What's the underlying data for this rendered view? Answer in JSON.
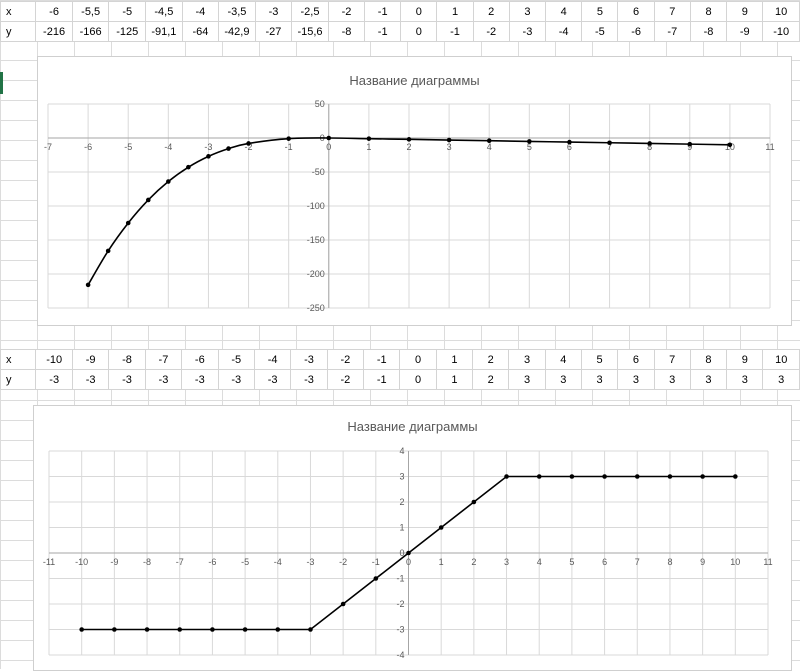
{
  "sheet": {
    "table1": {
      "x_label": "x",
      "y_label": "y",
      "x": [
        "-6",
        "-5,5",
        "-5",
        "-4,5",
        "-4",
        "-3,5",
        "-3",
        "-2,5",
        "-2",
        "-1",
        "0",
        "1",
        "2",
        "3",
        "4",
        "5",
        "6",
        "7",
        "8",
        "9",
        "10"
      ],
      "y": [
        "-216",
        "-166",
        "-125",
        "-91,1",
        "-64",
        "-42,9",
        "-27",
        "-15,6",
        "-8",
        "-1",
        "0",
        "-1",
        "-2",
        "-3",
        "-4",
        "-5",
        "-6",
        "-7",
        "-8",
        "-9",
        "-10"
      ]
    },
    "table2": {
      "x_label": "x",
      "y_label": "y",
      "x": [
        "-10",
        "-9",
        "-8",
        "-7",
        "-6",
        "-5",
        "-4",
        "-3",
        "-2",
        "-1",
        "0",
        "1",
        "2",
        "3",
        "4",
        "5",
        "6",
        "7",
        "8",
        "9",
        "10"
      ],
      "y": [
        "-3",
        "-3",
        "-3",
        "-3",
        "-3",
        "-3",
        "-3",
        "-3",
        "-2",
        "-1",
        "0",
        "1",
        "2",
        "3",
        "3",
        "3",
        "3",
        "3",
        "3",
        "3",
        "3"
      ]
    }
  },
  "chart_data": [
    {
      "type": "scatter",
      "title": "Название диаграммы",
      "x": [
        -6,
        -5.5,
        -5,
        -4.5,
        -4,
        -3.5,
        -3,
        -2.5,
        -2,
        -1,
        0,
        1,
        2,
        3,
        4,
        5,
        6,
        7,
        8,
        9,
        10
      ],
      "y": [
        -216,
        -166,
        -125,
        -91.1,
        -64,
        -42.9,
        -27,
        -15.6,
        -8,
        -1,
        0,
        -1,
        -2,
        -3,
        -4,
        -5,
        -6,
        -7,
        -8,
        -9,
        -10
      ],
      "xlim": [
        -7,
        11
      ],
      "ylim": [
        -250,
        50
      ],
      "x_ticks": [
        -7,
        -6,
        -5,
        -4,
        -3,
        -2,
        -1,
        0,
        1,
        2,
        3,
        4,
        5,
        6,
        7,
        8,
        9,
        10,
        11
      ],
      "y_ticks": [
        50,
        0,
        -50,
        -100,
        -150,
        -200,
        -250
      ],
      "grid": true,
      "line_color": "#000000"
    },
    {
      "type": "scatter",
      "title": "Название диаграммы",
      "x": [
        -10,
        -9,
        -8,
        -7,
        -6,
        -5,
        -4,
        -3,
        -2,
        -1,
        0,
        1,
        2,
        3,
        4,
        5,
        6,
        7,
        8,
        9,
        10
      ],
      "y": [
        -3,
        -3,
        -3,
        -3,
        -3,
        -3,
        -3,
        -3,
        -2,
        -1,
        0,
        1,
        2,
        3,
        3,
        3,
        3,
        3,
        3,
        3,
        3
      ],
      "xlim": [
        -11,
        11
      ],
      "ylim": [
        -4,
        4
      ],
      "x_ticks": [
        -11,
        -10,
        -9,
        -8,
        -7,
        -6,
        -5,
        -4,
        -3,
        -2,
        -1,
        0,
        1,
        2,
        3,
        4,
        5,
        6,
        7,
        8,
        9,
        10,
        11
      ],
      "y_ticks": [
        4,
        3,
        2,
        1,
        0,
        -1,
        -2,
        -3,
        -4
      ],
      "grid": true,
      "line_color": "#000000"
    }
  ]
}
